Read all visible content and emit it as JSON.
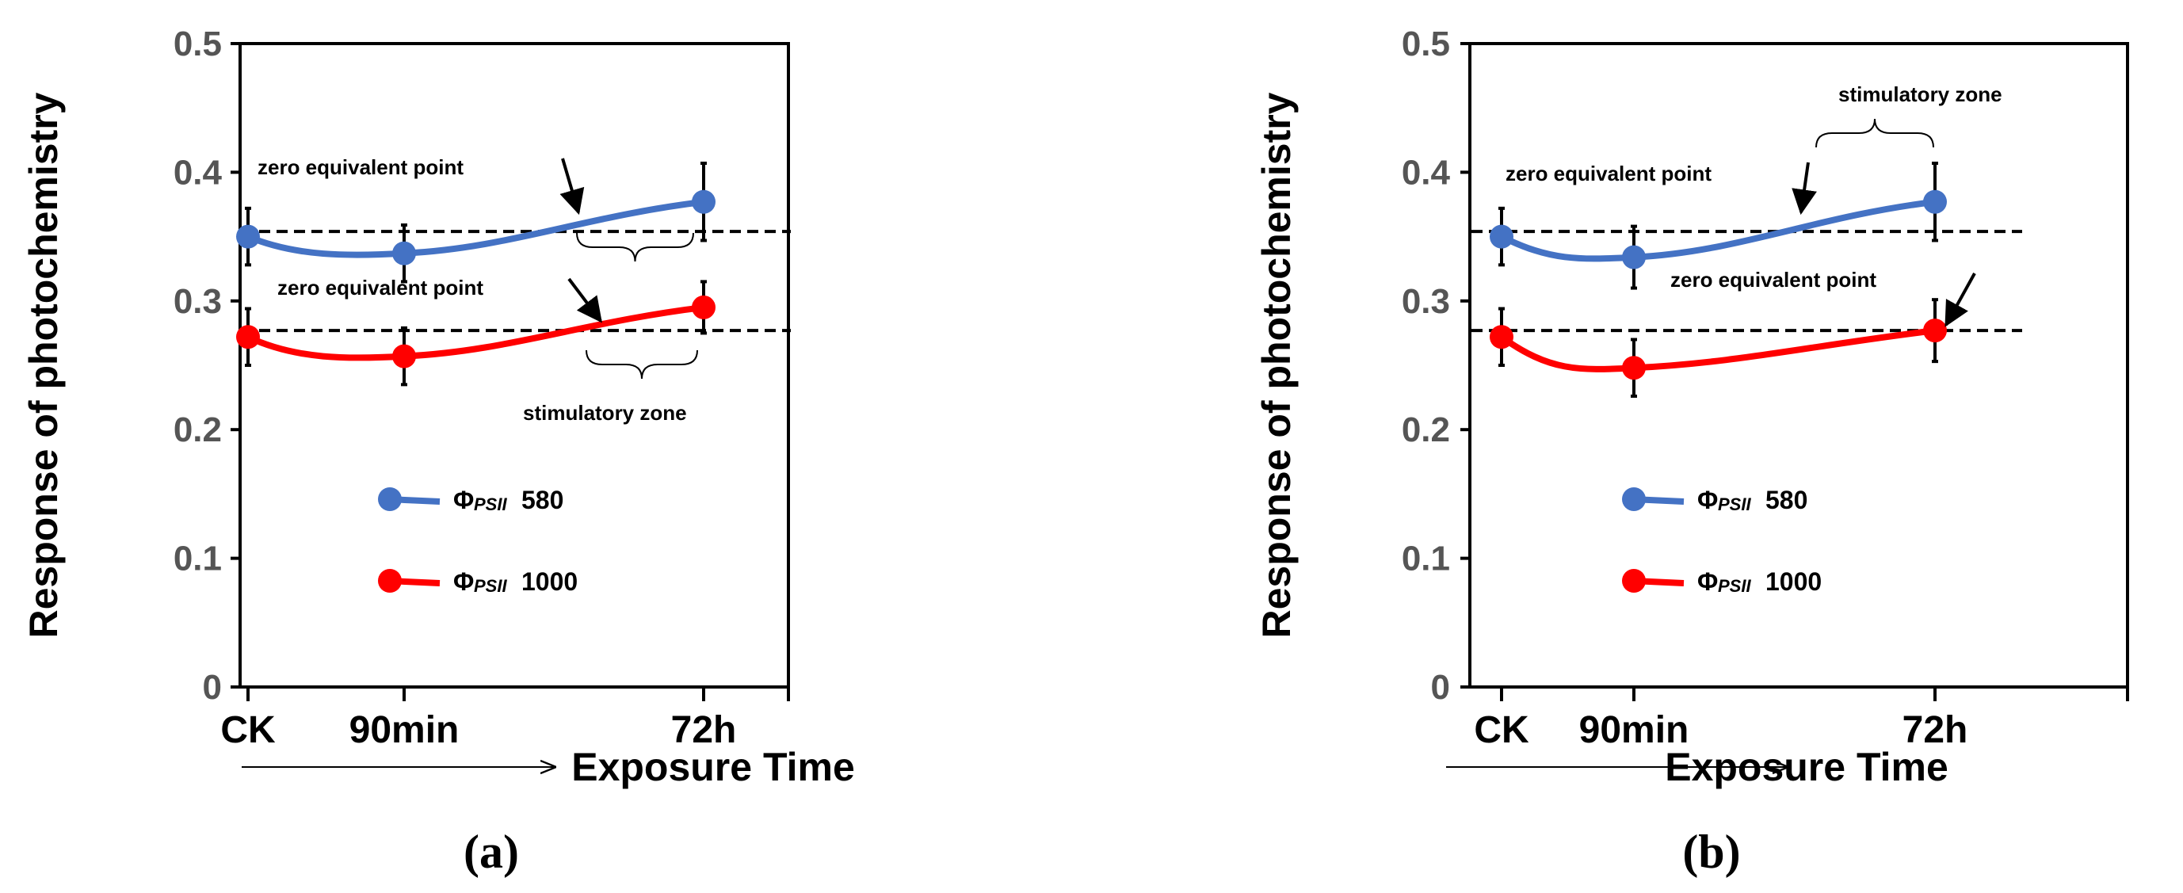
{
  "chart_data": [
    {
      "type": "line",
      "panel_label": "(a)",
      "categories": [
        "CK",
        "90min",
        "72h"
      ],
      "xlabel": "Exposure Time",
      "ylabel": "Response of photochemistry",
      "ylim": [
        0,
        0.5
      ],
      "yticks": [
        "0",
        "0.1",
        "0.2",
        "0.3",
        "0.4",
        "0.5"
      ],
      "grid": false,
      "series": [
        {
          "name": "580",
          "legend_symbol": "Φ",
          "legend_sub": "PSII",
          "color": "#4472C4",
          "values": [
            0.35,
            0.337,
            0.377
          ],
          "errors": [
            0.022,
            0.022,
            0.03
          ]
        },
        {
          "name": "1000",
          "legend_symbol": "Φ",
          "legend_sub": "PSII",
          "color": "#FF0000",
          "values": [
            0.272,
            0.257,
            0.295
          ],
          "errors": [
            0.022,
            0.022,
            0.02
          ]
        }
      ],
      "reference_lines": [
        0.354,
        0.277
      ],
      "annotations": [
        {
          "text": "zero equivalent point",
          "series": 0
        },
        {
          "text": "zero equivalent point",
          "series": 1
        },
        {
          "text": "stimulatory zone",
          "series": 1
        }
      ]
    },
    {
      "type": "line",
      "panel_label": "(b)",
      "categories": [
        "CK",
        "90min",
        "72h"
      ],
      "xlabel": "Exposure Time",
      "ylabel": "Response of photochemistry",
      "ylim": [
        0,
        0.5
      ],
      "yticks": [
        "0",
        "0.1",
        "0.2",
        "0.3",
        "0.4",
        "0.5"
      ],
      "grid": false,
      "series": [
        {
          "name": "580",
          "legend_symbol": "Φ",
          "legend_sub": "PSII",
          "color": "#4472C4",
          "values": [
            0.35,
            0.334,
            0.377
          ],
          "errors": [
            0.022,
            0.024,
            0.03
          ]
        },
        {
          "name": "1000",
          "legend_symbol": "Φ",
          "legend_sub": "PSII",
          "color": "#FF0000",
          "values": [
            0.272,
            0.248,
            0.277
          ],
          "errors": [
            0.022,
            0.022,
            0.024
          ]
        }
      ],
      "reference_lines": [
        0.354,
        0.277
      ],
      "annotations": [
        {
          "text": "stimulatory zone",
          "series": 0
        },
        {
          "text": "zero equivalent point",
          "series": 0
        },
        {
          "text": "zero equivalent point",
          "series": 1
        }
      ]
    }
  ]
}
